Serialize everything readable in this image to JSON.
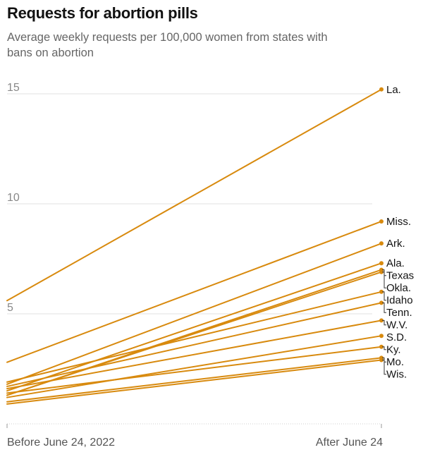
{
  "chart_data": {
    "type": "line",
    "title": "Requests for abortion pills",
    "subtitle": "Average weekly requests per 100,000 women from states with bans on abortion",
    "x": [
      "Before June 24, 2022",
      "After June 24"
    ],
    "ylim": [
      0,
      15.5
    ],
    "yticks": [
      5,
      10,
      15
    ],
    "grid": true,
    "line_color": "#d88a0e",
    "series": [
      {
        "name": "La.",
        "values": [
          5.6,
          15.2
        ]
      },
      {
        "name": "Miss.",
        "values": [
          2.8,
          9.2
        ]
      },
      {
        "name": "Ark.",
        "values": [
          1.8,
          8.2
        ]
      },
      {
        "name": "Ala.",
        "values": [
          1.5,
          7.3
        ]
      },
      {
        "name": "Texas",
        "values": [
          1.3,
          7.0
        ]
      },
      {
        "name": "Okla.",
        "values": [
          1.3,
          6.9
        ]
      },
      {
        "name": "Idaho",
        "values": [
          1.9,
          6.0
        ]
      },
      {
        "name": "Tenn.",
        "values": [
          1.7,
          5.5
        ]
      },
      {
        "name": "W.V.",
        "values": [
          1.6,
          4.7
        ]
      },
      {
        "name": "S.D.",
        "values": [
          1.2,
          4.0
        ]
      },
      {
        "name": "Ky.",
        "values": [
          1.4,
          3.5
        ]
      },
      {
        "name": "Mo.",
        "values": [
          1.0,
          3.0
        ]
      },
      {
        "name": "Wis.",
        "values": [
          0.9,
          2.9
        ]
      }
    ]
  }
}
